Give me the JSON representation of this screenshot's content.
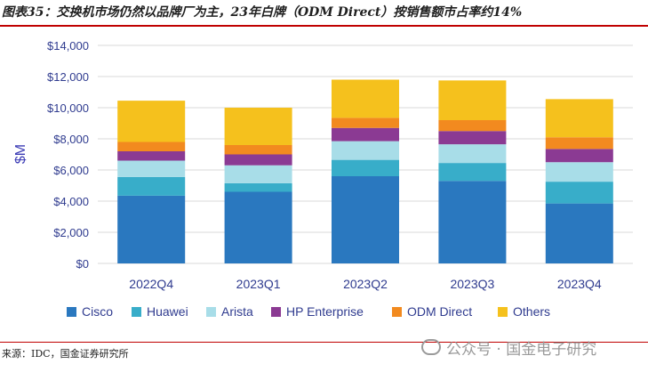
{
  "header": {
    "title": "图表35：交换机市场仍然以品牌厂为主，23年白牌（ODM Direct）按销售额市占率约14%"
  },
  "footer": {
    "source": "来源：IDC，国金证券研究所",
    "watermark": "公众号 · 国金电子研究"
  },
  "chart_data": {
    "type": "bar",
    "stacked": true,
    "categories": [
      "2022Q4",
      "2023Q1",
      "2023Q2",
      "2023Q3",
      "2023Q4"
    ],
    "ylabel": "$M",
    "ylim": [
      0,
      14000
    ],
    "yticks": [
      0,
      2000,
      4000,
      6000,
      8000,
      10000,
      12000,
      14000
    ],
    "ytick_labels": [
      "$0",
      "$2,000",
      "$4,000",
      "$6,000",
      "$8,000",
      "$10,000",
      "$12,000",
      "$14,000"
    ],
    "grid": true,
    "legend_position": "bottom",
    "series": [
      {
        "name": "Cisco",
        "color": "#2a78bf",
        "values": [
          4350,
          4600,
          5600,
          5300,
          3850
        ]
      },
      {
        "name": "Huawei",
        "color": "#38adc9",
        "values": [
          1200,
          550,
          1050,
          1150,
          1400
        ]
      },
      {
        "name": "Arista",
        "color": "#a8dde8",
        "values": [
          1050,
          1150,
          1200,
          1200,
          1250
        ]
      },
      {
        "name": "HP Enterprise",
        "color": "#8b3a93",
        "values": [
          600,
          700,
          850,
          850,
          850
        ]
      },
      {
        "name": "ODM Direct",
        "color": "#f28a1f",
        "values": [
          600,
          600,
          650,
          700,
          750
        ]
      },
      {
        "name": "Others",
        "color": "#f5c11d",
        "values": [
          2650,
          2400,
          2450,
          2550,
          2450
        ]
      }
    ]
  }
}
